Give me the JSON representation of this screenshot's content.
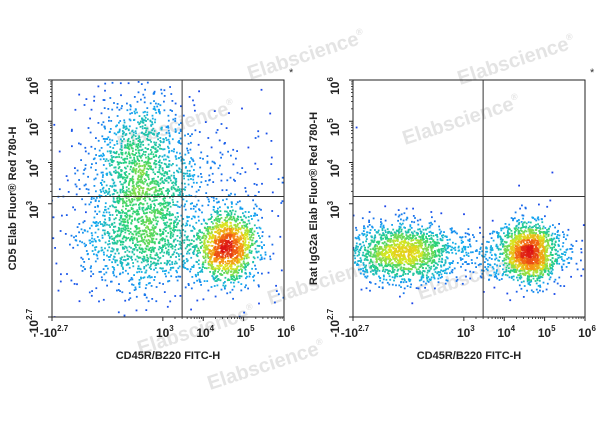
{
  "watermark": {
    "text": "Elabscience",
    "mark": "®"
  },
  "chart_data": [
    {
      "type": "scatter",
      "style": "flow-cytometry-density-dot-plot",
      "xlabel": "CD45R/B220 FITC-H",
      "ylabel": "CD5 Elab Fluor® Red 780-H",
      "corner_mark": "*",
      "x_ticks": [
        {
          "base": "-10",
          "exp": "2.7",
          "v": -500
        },
        {
          "base": "10",
          "exp": "3",
          "v": 1000
        },
        {
          "base": "10",
          "exp": "4",
          "v": 10000
        },
        {
          "base": "10",
          "exp": "5",
          "v": 100000
        },
        {
          "base": "10",
          "exp": "6",
          "v": 1000000
        }
      ],
      "y_ticks": [
        {
          "base": "-10",
          "exp": "2.7",
          "v": -500
        },
        {
          "base": "10",
          "exp": "3",
          "v": 1000
        },
        {
          "base": "10",
          "exp": "4",
          "v": 10000
        },
        {
          "base": "10",
          "exp": "5",
          "v": 100000
        },
        {
          "base": "10",
          "exp": "6",
          "v": 1000000
        }
      ],
      "gate": {
        "x": 3000,
        "y": 1500
      },
      "populations": [
        {
          "name_hidden": "p1",
          "x": 300,
          "y": 5000,
          "sx": 0.16,
          "sy": 0.25,
          "n": 1400
        },
        {
          "name_hidden": "p2",
          "x": 300,
          "y": 150,
          "sx": 0.22,
          "sy": 0.13,
          "n": 700
        },
        {
          "name_hidden": "p3",
          "x": 40000,
          "y": 150,
          "sx": 0.09,
          "sy": 0.11,
          "n": 1200
        },
        {
          "name_hidden": "p4",
          "x": 3000,
          "y": 400,
          "sx": 0.45,
          "sy": 0.3,
          "n": 350
        },
        {
          "name_hidden": "p5",
          "x": 3000,
          "y": 3500,
          "sx": 0.35,
          "sy": 0.18,
          "n": 220
        }
      ]
    },
    {
      "type": "scatter",
      "style": "flow-cytometry-density-dot-plot",
      "xlabel": "CD45R/B220 FITC-H",
      "ylabel": "Rat IgG2a Elab Fluor® Red 780-H",
      "corner_mark": "*",
      "x_ticks": [
        {
          "base": "-10",
          "exp": "2.7",
          "v": -500
        },
        {
          "base": "10",
          "exp": "3",
          "v": 1000
        },
        {
          "base": "10",
          "exp": "4",
          "v": 10000
        },
        {
          "base": "10",
          "exp": "5",
          "v": 100000
        },
        {
          "base": "10",
          "exp": "6",
          "v": 1000000
        }
      ],
      "y_ticks": [
        {
          "base": "-10",
          "exp": "2.7",
          "v": -500
        },
        {
          "base": "10",
          "exp": "3",
          "v": 1000
        },
        {
          "base": "10",
          "exp": "4",
          "v": 10000
        },
        {
          "base": "10",
          "exp": "5",
          "v": 100000
        },
        {
          "base": "10",
          "exp": "6",
          "v": 1000000
        }
      ],
      "gate": {
        "x": 3000,
        "y": 1500
      },
      "populations": [
        {
          "name_hidden": "p1",
          "x": 0,
          "y": 100,
          "sx": 0.16,
          "sy": 0.09,
          "n": 1300
        },
        {
          "name_hidden": "p2",
          "x": 40000,
          "y": 100,
          "sx": 0.09,
          "sy": 0.09,
          "n": 1300
        },
        {
          "name_hidden": "p3",
          "x": 3000,
          "y": 100,
          "sx": 0.4,
          "sy": 0.08,
          "n": 450
        },
        {
          "name_hidden": "p4",
          "x": 5000,
          "y": 12000,
          "sx": 0.6,
          "sy": 0.2,
          "n": 6
        }
      ]
    }
  ]
}
